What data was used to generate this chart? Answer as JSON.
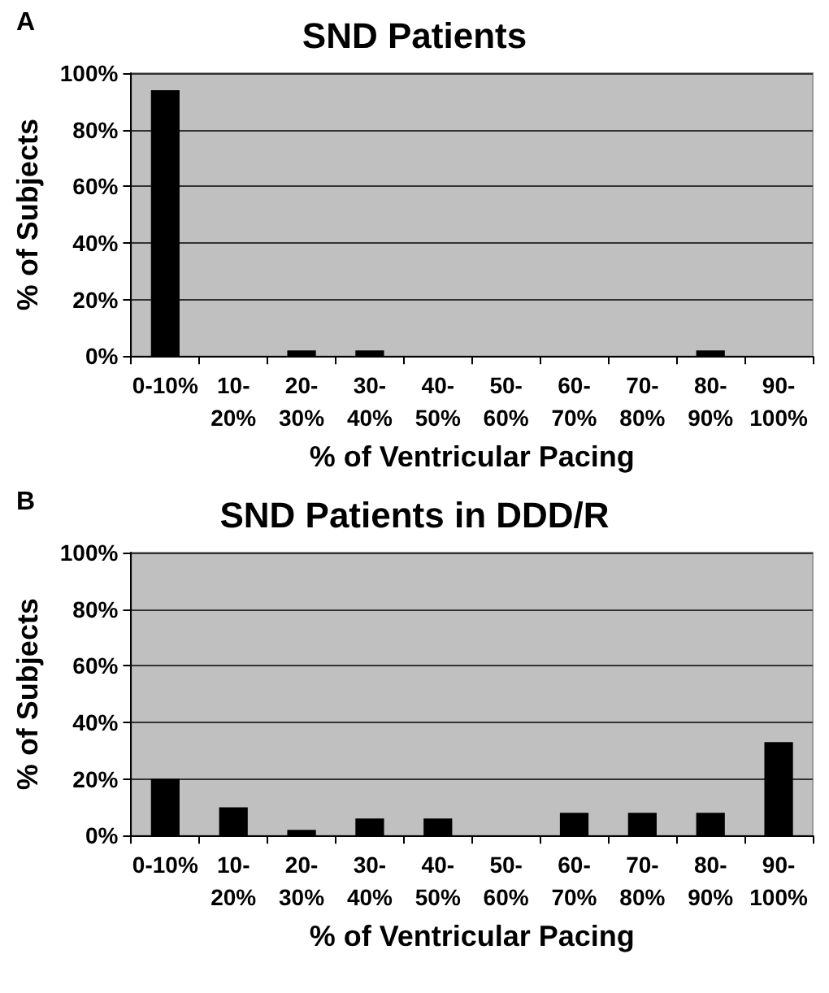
{
  "chart_data": [
    {
      "type": "bar",
      "title": "SND Patients",
      "xlabel": "% of Ventricular Pacing",
      "ylabel": "% of Subjects",
      "annotations": [
        "A"
      ],
      "categories": [
        "0-10%",
        "10-\n20%",
        "20-\n30%",
        "30-\n40%",
        "40-\n50%",
        "50-\n60%",
        "60-\n70%",
        "70-\n80%",
        "80-\n90%",
        "90-\n100%"
      ],
      "values": [
        94,
        0,
        2,
        2,
        0,
        0,
        0,
        0,
        2,
        0
      ],
      "color": "#000000",
      "ylim": [
        0,
        100
      ],
      "yticks": [
        {
          "value": 0,
          "label": "0%"
        },
        {
          "value": 20,
          "label": "20%"
        },
        {
          "value": 40,
          "label": "40%"
        },
        {
          "value": 60,
          "label": "60%"
        },
        {
          "value": 80,
          "label": "80%"
        },
        {
          "value": 100,
          "label": "100%"
        }
      ],
      "grid": "y"
    },
    {
      "type": "bar",
      "title": "SND Patients in DDD/R",
      "xlabel": "% of Ventricular Pacing",
      "ylabel": "% of Subjects",
      "annotations": [
        "B"
      ],
      "categories": [
        "0-10%",
        "10-\n20%",
        "20-\n30%",
        "30-\n40%",
        "40-\n50%",
        "50-\n60%",
        "60-\n70%",
        "70-\n80%",
        "80-\n90%",
        "90-\n100%"
      ],
      "values": [
        20,
        10,
        2,
        6,
        6,
        0,
        8,
        8,
        8,
        33
      ],
      "color": "#000000",
      "ylim": [
        0,
        100
      ],
      "yticks": [
        {
          "value": 0,
          "label": "0%"
        },
        {
          "value": 20,
          "label": "20%"
        },
        {
          "value": 40,
          "label": "40%"
        },
        {
          "value": 60,
          "label": "60%"
        },
        {
          "value": 80,
          "label": "80%"
        },
        {
          "value": 100,
          "label": "100%"
        }
      ],
      "grid": "y"
    }
  ]
}
